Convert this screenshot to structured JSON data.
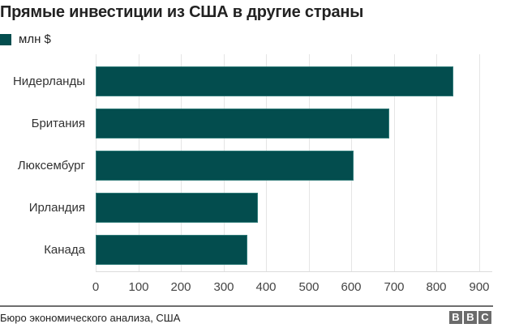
{
  "header": {
    "title": "Прямые инвестиции из США в другие страны",
    "legend_label": "млн $"
  },
  "colors": {
    "bar": "#034d4e",
    "bar_border": "#2f7a78",
    "grid": "#e5e5e5",
    "footer_line": "#6e6e6e",
    "logo_block": "#6b6b6b"
  },
  "footer": {
    "source": "Бюро экономического анализа, США",
    "logo_letters": [
      "B",
      "B",
      "C"
    ]
  },
  "chart_data": {
    "type": "bar",
    "orientation": "horizontal",
    "title": "Прямые инвестиции из США в другие страны",
    "xlabel": "",
    "ylabel": "",
    "categories": [
      "Нидерланды",
      "Британия",
      "Люксембург",
      "Ирландия",
      "Канада"
    ],
    "series": [
      {
        "name": "млн $",
        "values": [
          839,
          689,
          605,
          380,
          355
        ]
      }
    ],
    "xlim": [
      0,
      930
    ],
    "x_ticks": [
      "0",
      "100",
      "200",
      "300",
      "400",
      "500",
      "600",
      "700",
      "800",
      "900"
    ],
    "grid": true,
    "legend_position": "top-left"
  }
}
